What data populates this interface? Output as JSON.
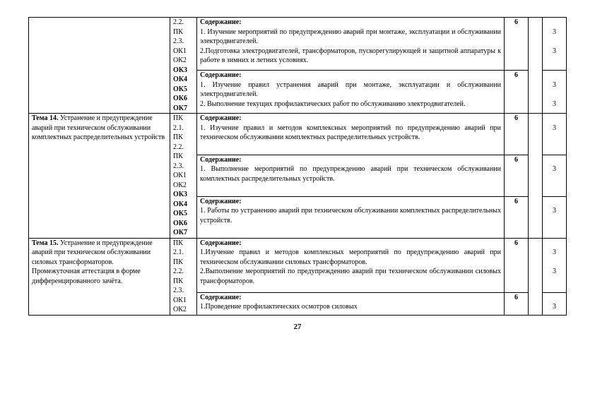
{
  "page_number": "27",
  "r1_codes_a": "2.2.",
  "r1_codes_b": "ПК",
  "r1_codes_c": "2.3.",
  "r1_codes_d": "ОК1",
  "r1_codes_e": "ОК2",
  "r1_codes_f": "ОК3",
  "r1_codes_g": "ОК4",
  "r1_codes_h": "ОК5",
  "r1_codes_i": "ОК6",
  "r1_codes_j": "ОК7",
  "r1_head": "Содержание:",
  "r1_line1": "1. Изучение мероприятий по предупреждению аварий при монтаже, эксплуатации и обслуживании электродвигателей.",
  "r1_line2": "2.Подготовка электродвигателей, трансформаторов, пускорегулирующей и защитной аппаратуры к работе в зимних и летних условиях.",
  "r1_num": "6",
  "r1_last1": "3",
  "r1_last2": "3",
  "r2_head": "Содержание:",
  "r2_line1": "1. Изучение правил устранения аварий при монтаже, эксплуатации и обслуживании электродвигателей.",
  "r2_line2": "2. Выполнение текущих профилактических работ по обслуживанию электродвигателей.",
  "r2_num": "6",
  "r2_last1": "3",
  "r2_last2": "3",
  "t14_title_a": "Тема 14.",
  "t14_title_b": " Устранение и предупреждение аварий при техническом обслуживании комплектных распределительных устройств",
  "t14_codes_a": "ПК",
  "t14_codes_b": "2.1.",
  "t14_codes_c": "ПК",
  "t14_codes_d": "2.2.",
  "t14_codes_e": "ПК",
  "t14_codes_f": "2.3.",
  "t14_codes_g": "ОК1",
  "t14_codes_h": "ОК2",
  "t14_codes_i": "ОК3",
  "t14_codes_j": "ОК4",
  "t14_codes_k": "ОК5",
  "t14_codes_l": "ОК6",
  "t14_codes_m": "ОК7",
  "t14r1_head": "Содержание:",
  "t14r1_line": "1. Изучение правил и методов комплексных мероприятий по предупреждению аварий при техническом обслуживании комплектных распределительных устройств.",
  "t14r1_num": "6",
  "t14r1_last": "3",
  "t14r2_head": "Содержание:",
  "t14r2_line": "1. Выполнение мероприятий по предупреждению аварий при техническом обслуживании комплектных распределительных устройств.",
  "t14r2_num": "6",
  "t14r2_last": "3",
  "t14r3_head": "Содержание:",
  "t14r3_line": "1. Работы по устранению аварий при техническом обслуживании комплектных распределительных устройств.",
  "t14r3_num": "6",
  "t14r3_last": "3",
  "t15_title_a": "Тема 15.",
  "t15_title_b": " Устранение и предупреждение аварий при техническом обслуживании силовых трансформаторов.",
  "t15_title_c": "Промежуточная аттестация в форме дифференцированного зачёта.",
  "t15_codes_a": "ПК",
  "t15_codes_b": "2.1.",
  "t15_codes_c": "ПК",
  "t15_codes_d": "2.2.",
  "t15_codes_e": "ПК",
  "t15_codes_f": "2.3.",
  "t15_codes_g": "ОК1",
  "t15_codes_h": "ОК2",
  "t15r1_head": "Содержание:",
  "t15r1_line1": "1.Изучение правил и методов комплексных мероприятий по предупреждению аварий при техническом обслуживании силовых трансформаторов.",
  "t15r1_line2": "2.Выполнение мероприятий по предупреждению аварий при техническом обслуживании силовых трансформаторов.",
  "t15r1_num": "6",
  "t15r1_last1": "3",
  "t15r1_last2": "3",
  "t15r2_head": "Содержание:",
  "t15r2_line": "1.Проведение профилактических осмотров силовых",
  "t15r2_num": "6",
  "t15r2_last": "3"
}
